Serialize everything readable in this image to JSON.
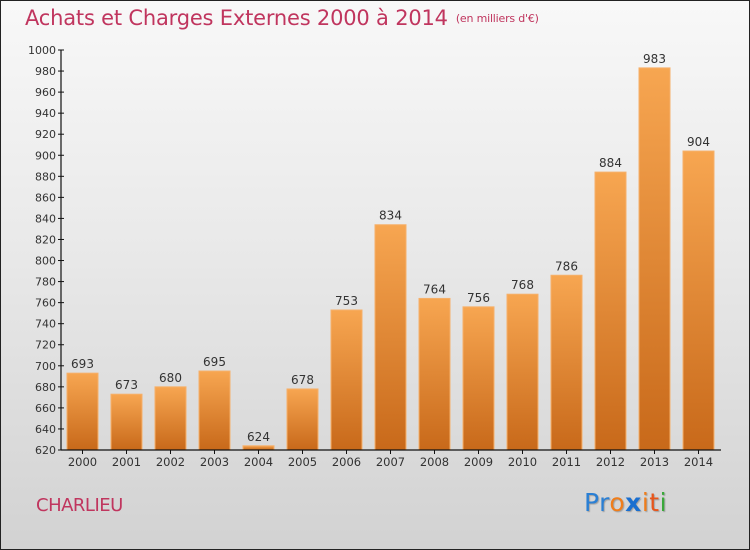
{
  "header": {
    "title": "Achats et Charges Externes 2000 à 2014",
    "unit": "(en milliers d'€)"
  },
  "footer": {
    "town": "CHARLIEU",
    "logo": {
      "letters": [
        {
          "char": "P",
          "color": "#2a7fd4"
        },
        {
          "char": "r",
          "color": "#2a7fd4"
        },
        {
          "char": "o",
          "color": "#f07d1a"
        },
        {
          "char": "x",
          "color": "#1a6fd0"
        },
        {
          "char": "i",
          "color": "#f07d1a"
        },
        {
          "char": "t",
          "color": "#e8551a"
        },
        {
          "char": "i",
          "color": "#3aa83a"
        }
      ]
    }
  },
  "colors": {
    "title": "#c0355e",
    "bar_top": "#f7a651",
    "bar_bottom": "#c8691a",
    "axis": "#111111"
  },
  "chart_data": {
    "type": "bar",
    "title": "Achats et Charges Externes 2000 à 2014",
    "subtitle": "(en milliers d'€)",
    "xlabel": "",
    "ylabel": "",
    "categories": [
      "2000",
      "2001",
      "2002",
      "2003",
      "2004",
      "2005",
      "2006",
      "2007",
      "2008",
      "2009",
      "2010",
      "2011",
      "2012",
      "2013",
      "2014"
    ],
    "values": [
      693,
      673,
      680,
      695,
      624,
      678,
      753,
      834,
      764,
      756,
      768,
      786,
      884,
      983,
      904
    ],
    "ylim": [
      620,
      1000
    ],
    "yticks": [
      620,
      640,
      660,
      680,
      700,
      720,
      740,
      760,
      780,
      800,
      820,
      840,
      860,
      880,
      900,
      920,
      940,
      960,
      980,
      1000
    ],
    "grid": false,
    "legend": "none",
    "data_labels": true
  }
}
